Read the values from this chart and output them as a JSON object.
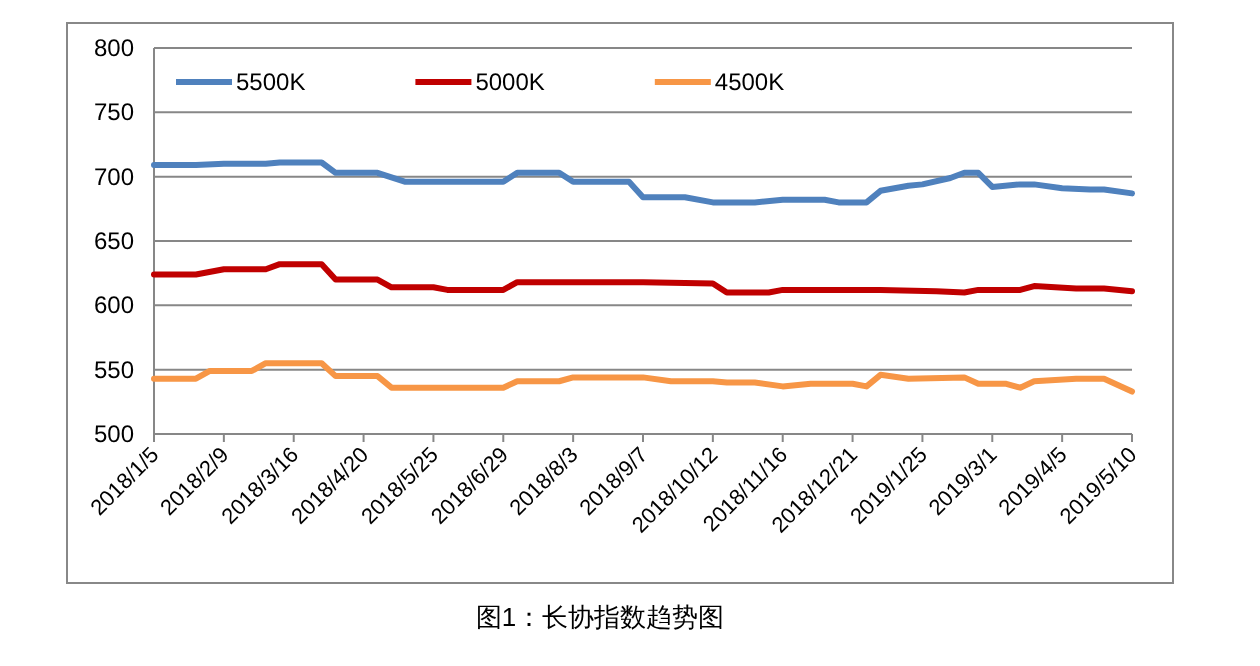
{
  "chart_data": {
    "type": "line",
    "annotations": [
      "图1：长协指数趋势图"
    ],
    "legend": "top",
    "grid": "y",
    "xlim": [
      "2018-01-05",
      "2019-05-10"
    ],
    "xticks": [
      {
        "value": "2018-01-05",
        "label": "2018/1/5"
      },
      {
        "value": "2018-02-09",
        "label": "2018/2/9"
      },
      {
        "value": "2018-03-16",
        "label": "2018/3/16"
      },
      {
        "value": "2018-04-20",
        "label": "2018/4/20"
      },
      {
        "value": "2018-05-25",
        "label": "2018/5/25"
      },
      {
        "value": "2018-06-29",
        "label": "2018/6/29"
      },
      {
        "value": "2018-08-03",
        "label": "2018/8/3"
      },
      {
        "value": "2018-09-07",
        "label": "2018/9/7"
      },
      {
        "value": "2018-10-12",
        "label": "2018/10/12"
      },
      {
        "value": "2018-11-16",
        "label": "2018/11/16"
      },
      {
        "value": "2018-12-21",
        "label": "2018/12/21"
      },
      {
        "value": "2019-01-25",
        "label": "2019/1/25"
      },
      {
        "value": "2019-03-01",
        "label": "2019/3/1"
      },
      {
        "value": "2019-04-05",
        "label": "2019/4/5"
      },
      {
        "value": "2019-05-10",
        "label": "2019/5/10"
      }
    ],
    "ylim": [
      500,
      800
    ],
    "yticks": [
      500,
      550,
      600,
      650,
      700,
      750,
      800
    ],
    "series": [
      {
        "name": "5500K",
        "color": "#4f81bd",
        "x": [
          "2018-01-05",
          "2018-01-26",
          "2018-02-09",
          "2018-03-02",
          "2018-03-09",
          "2018-03-30",
          "2018-04-06",
          "2018-04-27",
          "2018-05-11",
          "2018-06-29",
          "2018-07-06",
          "2018-07-27",
          "2018-08-03",
          "2018-08-31",
          "2018-09-07",
          "2018-09-28",
          "2018-10-12",
          "2018-11-02",
          "2018-11-16",
          "2018-12-07",
          "2018-12-14",
          "2018-12-28",
          "2019-01-04",
          "2019-01-18",
          "2019-01-25",
          "2019-02-08",
          "2019-02-15",
          "2019-02-22",
          "2019-03-01",
          "2019-03-15",
          "2019-03-22",
          "2019-04-05",
          "2019-04-19",
          "2019-04-26",
          "2019-05-10"
        ],
        "values": [
          709,
          709,
          710,
          710,
          711,
          711,
          703,
          703,
          696,
          696,
          703,
          703,
          696,
          696,
          684,
          684,
          680,
          680,
          682,
          682,
          680,
          680,
          689,
          693,
          694,
          699,
          703,
          703,
          692,
          694,
          694,
          691,
          690,
          690,
          687
        ]
      },
      {
        "name": "5000K",
        "color": "#c00000",
        "x": [
          "2018-01-05",
          "2018-01-26",
          "2018-02-09",
          "2018-03-02",
          "2018-03-09",
          "2018-03-30",
          "2018-04-06",
          "2018-04-27",
          "2018-05-04",
          "2018-05-25",
          "2018-06-01",
          "2018-06-29",
          "2018-07-06",
          "2018-09-07",
          "2018-10-12",
          "2018-10-19",
          "2018-11-09",
          "2018-11-16",
          "2019-01-04",
          "2019-02-01",
          "2019-02-15",
          "2019-02-22",
          "2019-03-15",
          "2019-03-22",
          "2019-04-12",
          "2019-04-26",
          "2019-05-10"
        ],
        "values": [
          624,
          624,
          628,
          628,
          632,
          632,
          620,
          620,
          614,
          614,
          612,
          612,
          618,
          618,
          617,
          610,
          610,
          612,
          612,
          611,
          610,
          612,
          612,
          615,
          613,
          613,
          611
        ]
      },
      {
        "name": "4500K",
        "color": "#f79646",
        "x": [
          "2018-01-05",
          "2018-01-26",
          "2018-02-02",
          "2018-02-23",
          "2018-03-02",
          "2018-03-30",
          "2018-04-06",
          "2018-04-27",
          "2018-05-04",
          "2018-06-29",
          "2018-07-06",
          "2018-07-27",
          "2018-08-03",
          "2018-09-07",
          "2018-09-21",
          "2018-10-12",
          "2018-10-19",
          "2018-11-02",
          "2018-11-16",
          "2018-11-30",
          "2018-12-21",
          "2018-12-28",
          "2019-01-04",
          "2019-01-18",
          "2019-02-15",
          "2019-02-22",
          "2019-03-08",
          "2019-03-15",
          "2019-03-22",
          "2019-04-12",
          "2019-04-26",
          "2019-05-10"
        ],
        "values": [
          543,
          543,
          549,
          549,
          555,
          555,
          545,
          545,
          536,
          536,
          541,
          541,
          544,
          544,
          541,
          541,
          540,
          540,
          537,
          539,
          539,
          537,
          546,
          543,
          544,
          539,
          539,
          536,
          541,
          543,
          543,
          533
        ]
      }
    ]
  }
}
